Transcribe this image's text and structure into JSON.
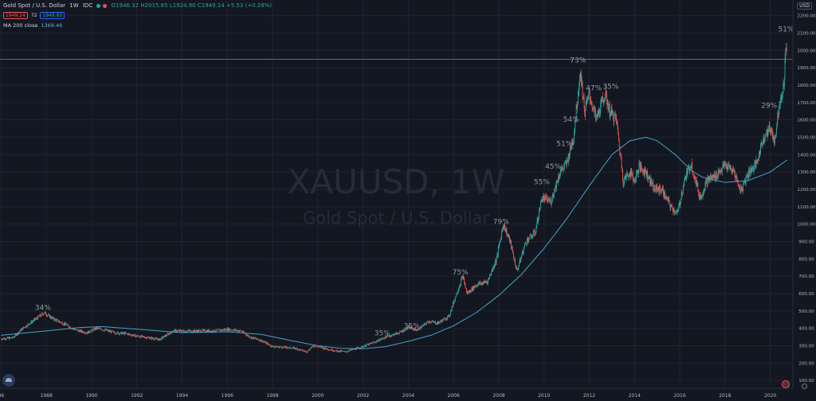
{
  "header": {
    "symbol_title": "Gold Spot / U.S. Dollar",
    "interval": "1W",
    "exchange": "IDC",
    "ohlc": "O1946.32 H2015.65 L1924.90 C1949.14 +5.53 (+0.28%)",
    "bid": "1949.14",
    "spread": "72",
    "ask": "1949.85"
  },
  "indicator": {
    "label": "MA 200 close",
    "value": "1369.46"
  },
  "currency": "USD",
  "watermark": {
    "symbol": "XAUUSD, 1W",
    "name": "Gold Spot / U.S. Dollar"
  },
  "colors": {
    "background": "#131722",
    "grid": "#1e2330",
    "up": "#26a69a",
    "down": "#ef5350",
    "ma": "#4aa3c4",
    "price_line": "#26a69a",
    "label_text": "#9598a1"
  },
  "chart_data": {
    "type": "candlestick",
    "x_ticks": [
      "86",
      "1988",
      "1990",
      "1992",
      "1994",
      "1996",
      "1998",
      "2000",
      "2002",
      "2004",
      "2006",
      "2008",
      "2010",
      "2012",
      "2014",
      "2016",
      "2018",
      "2020"
    ],
    "x_tick_years": [
      1986,
      1988,
      1990,
      1992,
      1994,
      1996,
      1998,
      2000,
      2002,
      2004,
      2006,
      2008,
      2010,
      2012,
      2014,
      2016,
      2018,
      2020
    ],
    "y_ticks": [
      100,
      200,
      300,
      400,
      500,
      600,
      700,
      800,
      900,
      1000,
      1100,
      1200,
      1300,
      1400,
      1500,
      1600,
      1700,
      1800,
      1900,
      2000,
      2100,
      2200
    ],
    "y_tick_labels": [
      "100.00",
      "200.00",
      "300.00",
      "400.00",
      "500.00",
      "600.00",
      "700.00",
      "800.00",
      "900.00",
      "1000.00",
      "1100.00",
      "1200.00",
      "1300.00",
      "1400.00",
      "1500.00",
      "1600.00",
      "1700.00",
      "1800.00",
      "1900.00",
      "2000.00",
      "2100.00",
      "2200.00"
    ],
    "xlim": [
      1985.95,
      2021.0
    ],
    "ylim": [
      55,
      2290
    ],
    "last_price": 1949.14,
    "last_price_label": "1949.14",
    "price_path": [
      [
        1986.0,
        340
      ],
      [
        1986.5,
        345
      ],
      [
        1987.0,
        405
      ],
      [
        1987.6,
        460
      ],
      [
        1987.9,
        490
      ],
      [
        1988.3,
        455
      ],
      [
        1988.8,
        425
      ],
      [
        1989.3,
        390
      ],
      [
        1989.8,
        375
      ],
      [
        1990.2,
        400
      ],
      [
        1990.6,
        390
      ],
      [
        1991.0,
        375
      ],
      [
        1991.5,
        370
      ],
      [
        1992.0,
        355
      ],
      [
        1992.6,
        345
      ],
      [
        1993.0,
        335
      ],
      [
        1993.6,
        385
      ],
      [
        1994.0,
        385
      ],
      [
        1994.6,
        385
      ],
      [
        1995.0,
        385
      ],
      [
        1995.5,
        385
      ],
      [
        1996.0,
        395
      ],
      [
        1996.6,
        385
      ],
      [
        1997.0,
        350
      ],
      [
        1997.5,
        330
      ],
      [
        1998.0,
        295
      ],
      [
        1998.6,
        290
      ],
      [
        1999.0,
        285
      ],
      [
        1999.5,
        265
      ],
      [
        1999.8,
        300
      ],
      [
        2000.3,
        285
      ],
      [
        2000.8,
        270
      ],
      [
        2001.2,
        265
      ],
      [
        2001.6,
        280
      ],
      [
        2002.0,
        295
      ],
      [
        2002.5,
        320
      ],
      [
        2003.0,
        350
      ],
      [
        2003.6,
        375
      ],
      [
        2004.0,
        405
      ],
      [
        2004.4,
        390
      ],
      [
        2004.9,
        440
      ],
      [
        2005.3,
        430
      ],
      [
        2005.8,
        470
      ],
      [
        2006.0,
        550
      ],
      [
        2006.4,
        700
      ],
      [
        2006.6,
        600
      ],
      [
        2007.0,
        650
      ],
      [
        2007.5,
        670
      ],
      [
        2007.9,
        800
      ],
      [
        2008.2,
        1000
      ],
      [
        2008.5,
        900
      ],
      [
        2008.8,
        730
      ],
      [
        2009.2,
        900
      ],
      [
        2009.6,
        950
      ],
      [
        2009.9,
        1150
      ],
      [
        2010.3,
        1130
      ],
      [
        2010.7,
        1300
      ],
      [
        2011.0,
        1350
      ],
      [
        2011.3,
        1500
      ],
      [
        2011.6,
        1880
      ],
      [
        2011.8,
        1650
      ],
      [
        2012.0,
        1750
      ],
      [
        2012.3,
        1600
      ],
      [
        2012.7,
        1750
      ],
      [
        2012.9,
        1650
      ],
      [
        2013.2,
        1600
      ],
      [
        2013.5,
        1250
      ],
      [
        2013.8,
        1300
      ],
      [
        2014.0,
        1250
      ],
      [
        2014.2,
        1330
      ],
      [
        2014.5,
        1300
      ],
      [
        2014.9,
        1200
      ],
      [
        2015.2,
        1200
      ],
      [
        2015.6,
        1100
      ],
      [
        2015.9,
        1060
      ],
      [
        2016.2,
        1250
      ],
      [
        2016.5,
        1350
      ],
      [
        2016.9,
        1150
      ],
      [
        2017.2,
        1250
      ],
      [
        2017.6,
        1280
      ],
      [
        2018.0,
        1340
      ],
      [
        2018.4,
        1300
      ],
      [
        2018.7,
        1190
      ],
      [
        2019.0,
        1290
      ],
      [
        2019.4,
        1350
      ],
      [
        2019.7,
        1500
      ],
      [
        2020.0,
        1550
      ],
      [
        2020.2,
        1480
      ],
      [
        2020.4,
        1700
      ],
      [
        2020.6,
        1800
      ],
      [
        2020.7,
        2050
      ],
      [
        2020.75,
        1949
      ]
    ],
    "ma_200": [
      [
        1986.0,
        360
      ],
      [
        1988.0,
        385
      ],
      [
        1989.5,
        405
      ],
      [
        1990.5,
        410
      ],
      [
        1992.0,
        395
      ],
      [
        1994.0,
        375
      ],
      [
        1996.0,
        380
      ],
      [
        1997.5,
        365
      ],
      [
        1998.8,
        330
      ],
      [
        2000.0,
        300
      ],
      [
        2001.0,
        285
      ],
      [
        2002.0,
        282
      ],
      [
        2003.0,
        295
      ],
      [
        2004.0,
        325
      ],
      [
        2005.0,
        360
      ],
      [
        2006.0,
        415
      ],
      [
        2007.0,
        490
      ],
      [
        2008.0,
        590
      ],
      [
        2009.0,
        710
      ],
      [
        2010.0,
        860
      ],
      [
        2011.0,
        1030
      ],
      [
        2012.0,
        1220
      ],
      [
        2013.0,
        1400
      ],
      [
        2013.8,
        1480
      ],
      [
        2014.5,
        1500
      ],
      [
        2015.0,
        1480
      ],
      [
        2015.8,
        1400
      ],
      [
        2016.5,
        1310
      ],
      [
        2017.0,
        1270
      ],
      [
        2018.0,
        1240
      ],
      [
        2019.0,
        1250
      ],
      [
        2020.0,
        1300
      ],
      [
        2020.75,
        1369.46
      ]
    ],
    "annotations": [
      {
        "text": "34%",
        "x": 1987.85,
        "y": 505
      },
      {
        "text": "35%",
        "x": 2002.85,
        "y": 360
      },
      {
        "text": "35%",
        "x": 2004.15,
        "y": 400
      },
      {
        "text": "75%",
        "x": 2006.3,
        "y": 710
      },
      {
        "text": "79%",
        "x": 2008.1,
        "y": 1000
      },
      {
        "text": "55%",
        "x": 2009.9,
        "y": 1230
      },
      {
        "text": "45%",
        "x": 2010.4,
        "y": 1320
      },
      {
        "text": "51%",
        "x": 2010.9,
        "y": 1450
      },
      {
        "text": "54%",
        "x": 2011.2,
        "y": 1590
      },
      {
        "text": "73%",
        "x": 2011.5,
        "y": 1930
      },
      {
        "text": "47%",
        "x": 2012.2,
        "y": 1770
      },
      {
        "text": "35%",
        "x": 2012.95,
        "y": 1780
      },
      {
        "text": "29%",
        "x": 2019.95,
        "y": 1670
      },
      {
        "text": "51%",
        "x": 2020.7,
        "y": 2110
      }
    ]
  }
}
